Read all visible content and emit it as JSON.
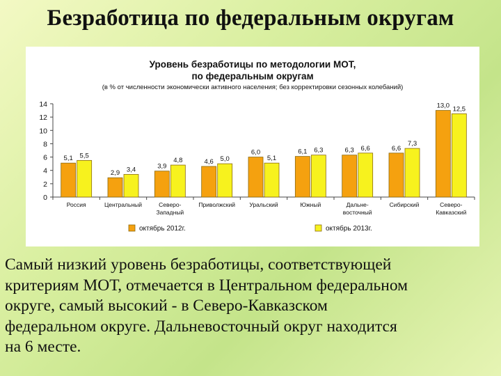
{
  "slide": {
    "title": "Безработица по федеральным округам",
    "body_lines": [
      "Самый низкий уровень безработицы, соответствующей",
      "критериям МОТ, отмечается в Центральном федеральном",
      "округе, самый высокий - в Северо-Кавказском",
      "федеральном округе. Дальневосточный округ находится",
      "на 6 месте."
    ]
  },
  "chart_data": {
    "type": "bar",
    "title_lines": [
      "Уровень безработицы по методологии МОТ,",
      "по федеральным округам"
    ],
    "subtitle": "(в % от численности экономически активного населения; без корректировки сезонных колебаний)",
    "categories": [
      [
        "Россия"
      ],
      [
        "Центральный"
      ],
      [
        "Северо-",
        "Западный"
      ],
      [
        "Приволжский"
      ],
      [
        "Уральский"
      ],
      [
        "Южный"
      ],
      [
        "Дальне-",
        "восточный"
      ],
      [
        "Сибирский"
      ],
      [
        "Северо-",
        "Кавказский"
      ]
    ],
    "series": [
      {
        "name": "октябрь 2012г.",
        "values": [
          5.1,
          2.9,
          3.9,
          4.6,
          6.0,
          6.1,
          6.3,
          6.6,
          13.0
        ],
        "labels": [
          "5,1",
          "2,9",
          "3,9",
          "4,6",
          "6,0",
          "6,1",
          "6,3",
          "6,6",
          "13,0"
        ],
        "color": "#f5a10f"
      },
      {
        "name": "октябрь 2013г.",
        "values": [
          5.5,
          3.4,
          4.8,
          5.0,
          5.1,
          6.3,
          6.6,
          7.3,
          12.5
        ],
        "labels": [
          "5,5",
          "3,4",
          "4,8",
          "5,0",
          "5,1",
          "6,3",
          "6,6",
          "7,3",
          "12,5"
        ],
        "color": "#f7f21e"
      }
    ],
    "y_ticks": [
      0,
      2,
      4,
      6,
      8,
      10,
      12,
      14
    ],
    "ylim": [
      0,
      14
    ],
    "grid": false,
    "legend": "bottom"
  }
}
